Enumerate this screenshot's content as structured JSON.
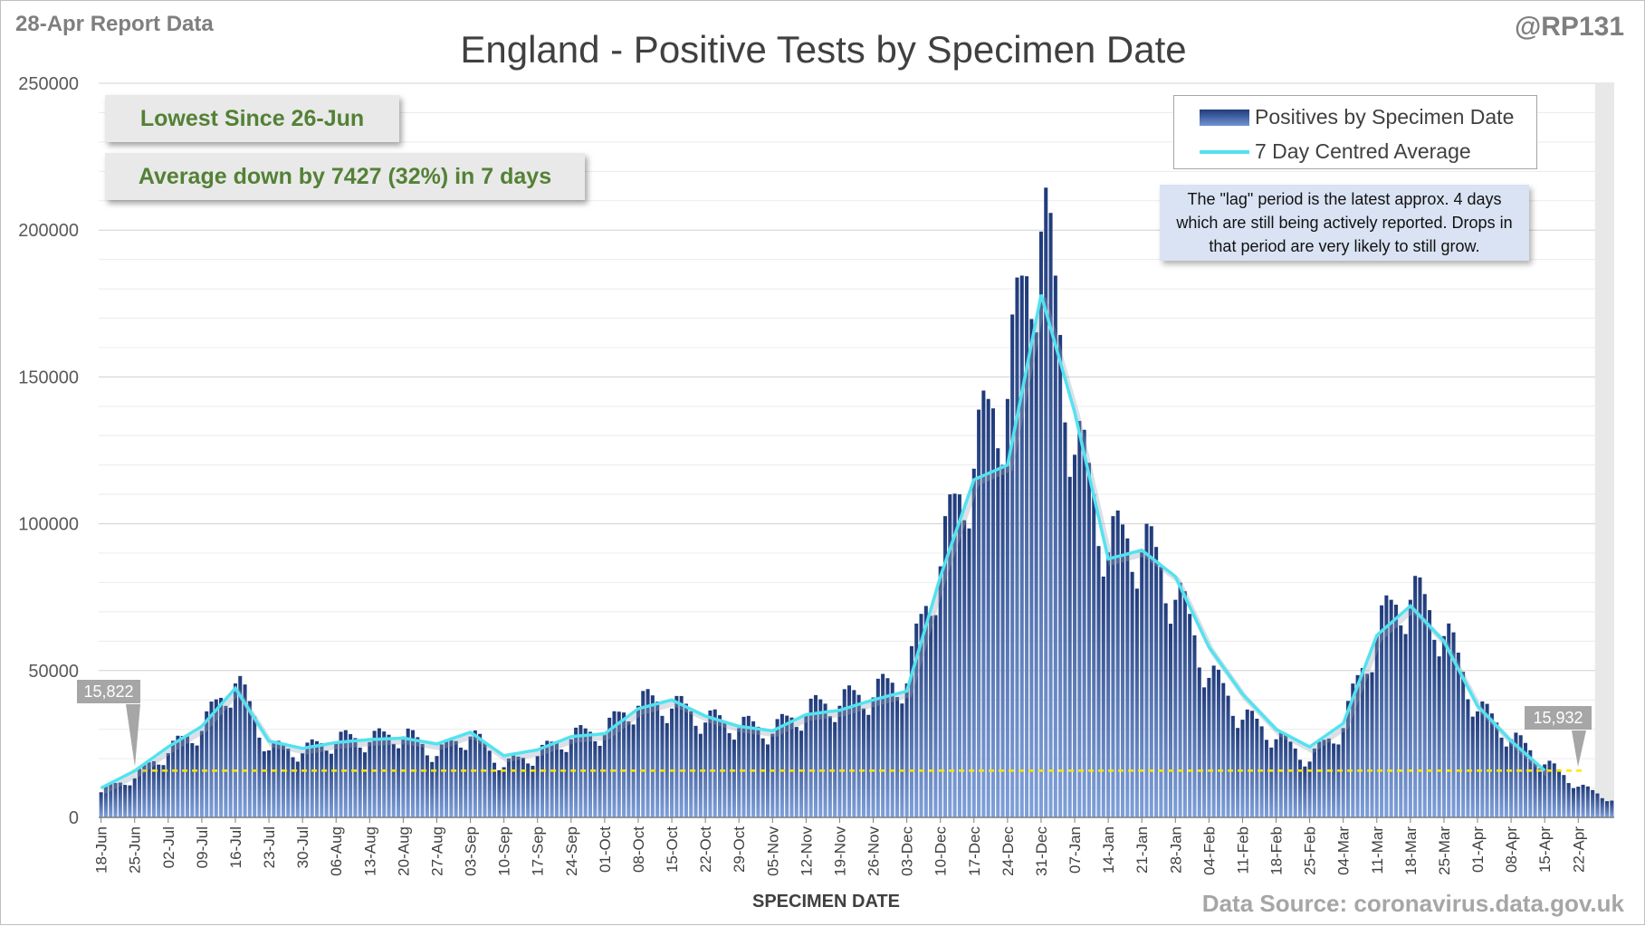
{
  "header": {
    "report_label": "28-Apr Report Data",
    "handle": "@RP131",
    "title": "England - Positive Tests by Specimen Date"
  },
  "callouts": {
    "lowest": "Lowest Since 26-Jun",
    "average": "Average down by 7427 (32%) in 7 days"
  },
  "legend": {
    "bars": "Positives by Specimen Date",
    "line": "7 Day Centred Average"
  },
  "note": "The \"lag\" period is the latest approx. 4 days which are still being actively reported. Drops in that period are very likely to still grow.",
  "markers": {
    "start": "15,822",
    "end": "15,932"
  },
  "axis": {
    "xlabel": "SPECIMEN DATE"
  },
  "source": "Data Source: coronavirus.data.gov.uk",
  "colors": {
    "bar_top": "#1f3a7a",
    "bar_bottom": "#7fa0da",
    "average_line": "#53e2f0",
    "reference_line": "#ffe600",
    "lag_shade": "#e8e8e8"
  },
  "chart_data": {
    "type": "bar",
    "title": "England - Positive Tests by Specimen Date",
    "xlabel": "SPECIMEN DATE",
    "ylabel": "",
    "ylim": [
      0,
      250000
    ],
    "yticks": [
      0,
      50000,
      100000,
      150000,
      200000,
      250000
    ],
    "ytick_labels": [
      "0",
      "50000",
      "100000",
      "150000",
      "200000",
      "250000"
    ],
    "x_start": "18-Jun",
    "x_end": "28-Apr",
    "xtick_labels": [
      "18-Jun",
      "25-Jun",
      "02-Jul",
      "09-Jul",
      "16-Jul",
      "23-Jul",
      "30-Jul",
      "06-Aug",
      "13-Aug",
      "20-Aug",
      "27-Aug",
      "03-Sep",
      "10-Sep",
      "17-Sep",
      "24-Sep",
      "01-Oct",
      "08-Oct",
      "15-Oct",
      "22-Oct",
      "29-Oct",
      "05-Nov",
      "12-Nov",
      "19-Nov",
      "26-Nov",
      "03-Dec",
      "10-Dec",
      "17-Dec",
      "24-Dec",
      "31-Dec",
      "07-Jan",
      "14-Jan",
      "21-Jan",
      "28-Jan",
      "04-Feb",
      "11-Feb",
      "18-Feb",
      "25-Feb",
      "04-Mar",
      "11-Mar",
      "18-Mar",
      "25-Mar",
      "01-Apr",
      "08-Apr",
      "15-Apr",
      "22-Apr"
    ],
    "grid": true,
    "lag_days": 4,
    "reference_value": 15932,
    "series": [
      {
        "name": "Positives by Specimen Date",
        "type": "bar",
        "weekly_anchor_values": [
          9000,
          14000,
          23000,
          31000,
          48000,
          24000,
          23000,
          27000,
          27000,
          29000,
          22000,
          29000,
          18000,
          22000,
          28000,
          30000,
          40000,
          39000,
          34000,
          32000,
          30000,
          37000,
          40000,
          43000,
          48000,
          90000,
          125000,
          150000,
          210000,
          130000,
          95000,
          95000,
          78000,
          50000,
          35000,
          28000,
          20000,
          32000,
          65000,
          78000,
          65000,
          38000,
          28000,
          19000,
          11000,
          6000
        ]
      },
      {
        "name": "7 Day Centred Average",
        "type": "line",
        "weekly_anchor_values": [
          10000,
          15822,
          24000,
          31000,
          44000,
          26000,
          23500,
          25500,
          26500,
          27000,
          25000,
          29000,
          21000,
          23000,
          27500,
          28500,
          37000,
          40000,
          34500,
          31000,
          29500,
          35000,
          36500,
          40000,
          43000,
          82000,
          115000,
          120000,
          178000,
          138000,
          88000,
          91000,
          82000,
          58000,
          42000,
          30000,
          24000,
          32000,
          62000,
          72000,
          60000,
          38000,
          26000,
          15932
        ]
      }
    ]
  }
}
